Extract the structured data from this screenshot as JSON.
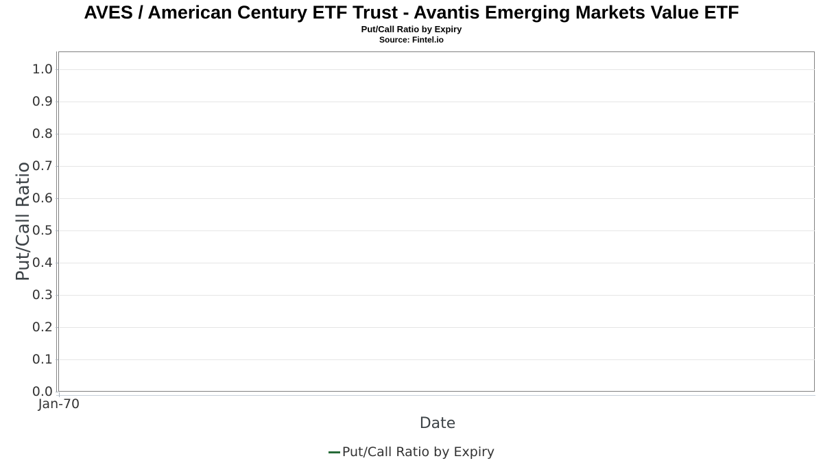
{
  "chart_data": {
    "type": "line",
    "title": "AVES / American Century ETF Trust - Avantis Emerging Markets Value ETF",
    "subtitle": "Put/Call Ratio by Expiry",
    "source": "Source: Fintel.io",
    "xlabel": "Date",
    "ylabel": "Put/Call Ratio",
    "grid": true,
    "legend_position": "bottom-center",
    "ylim": [
      0.0,
      1.055
    ],
    "y_ticks": [
      {
        "label": "0.0",
        "value": 0.0
      },
      {
        "label": "0.1",
        "value": 0.1
      },
      {
        "label": "0.2",
        "value": 0.2
      },
      {
        "label": "0.3",
        "value": 0.3
      },
      {
        "label": "0.4",
        "value": 0.4
      },
      {
        "label": "0.5",
        "value": 0.5
      },
      {
        "label": "0.6",
        "value": 0.6
      },
      {
        "label": "0.7",
        "value": 0.7
      },
      {
        "label": "0.8",
        "value": 0.8
      },
      {
        "label": "0.9",
        "value": 0.9
      },
      {
        "label": "1.0",
        "value": 1.0
      }
    ],
    "x_ticks": [
      {
        "label": "Jan-70",
        "x_frac": 0.0
      }
    ],
    "legend": [
      {
        "label": "Put/Call Ratio by Expiry",
        "color": "#276b39"
      }
    ],
    "series": [
      {
        "name": "Put/Call Ratio by Expiry",
        "color": "#276b39",
        "points": []
      }
    ],
    "colors": {
      "title": "#000000",
      "plot_border": "#808080",
      "y_axis_line": "#878787",
      "x_axis_line": "#c5ced8",
      "gridline": "#e5e5e5",
      "tick_mark": "#a9b2bc",
      "tick_label": "#333333",
      "axis_title": "#3d4347",
      "legend_text": "#333333",
      "series_green": "#276b39"
    }
  }
}
